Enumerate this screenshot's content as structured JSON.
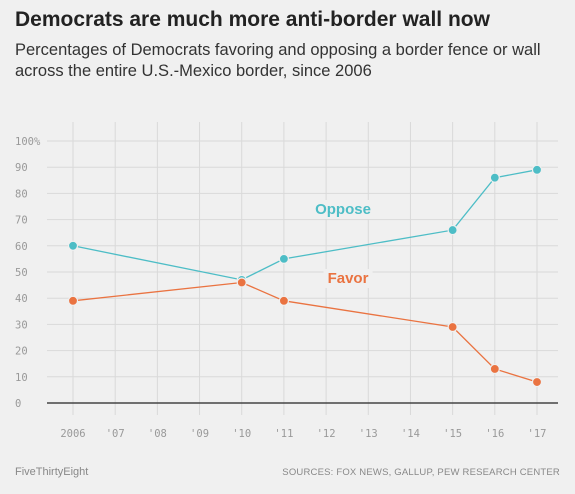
{
  "title": "Democrats are much more anti-border wall now",
  "subtitle": "Percentages of Democrats favoring and opposing a border fence or wall across the entire U.S.-Mexico border, since 2006",
  "footer": {
    "brand": "FiveThirtyEight",
    "sources": "SOURCES: FOX NEWS, GALLUP, PEW RESEARCH CENTER"
  },
  "colors": {
    "oppose": "#4dbdc6",
    "favor": "#ea7341",
    "grid": "#d9d9d9",
    "baseline": "#444444",
    "background": "#f0f0f0"
  },
  "chart_data": {
    "type": "line",
    "x_ticks": [
      2006,
      2007,
      2008,
      2009,
      2010,
      2011,
      2012,
      2013,
      2014,
      2015,
      2016,
      2017
    ],
    "x_tick_labels": [
      "2006",
      "'07",
      "'08",
      "'09",
      "'10",
      "'11",
      "'12",
      "'13",
      "'14",
      "'15",
      "'16",
      "'17"
    ],
    "y_ticks": [
      0,
      10,
      20,
      30,
      40,
      50,
      60,
      70,
      80,
      90,
      100
    ],
    "y_tick_labels": [
      "0",
      "10",
      "20",
      "30",
      "40",
      "50",
      "60",
      "70",
      "80",
      "90",
      "100%"
    ],
    "xlim": [
      2006,
      2017
    ],
    "ylim": [
      0,
      100
    ],
    "grid": true,
    "series": [
      {
        "name": "Oppose",
        "key": "oppose",
        "x": [
          2006,
          2010,
          2011,
          2015,
          2016,
          2017
        ],
        "y": [
          60,
          47,
          55,
          66,
          86,
          89
        ]
      },
      {
        "name": "Favor",
        "key": "favor",
        "x": [
          2006,
          2010,
          2011,
          2015,
          2016,
          2017
        ],
        "y": [
          39,
          46,
          39,
          29,
          13,
          8
        ]
      }
    ]
  }
}
